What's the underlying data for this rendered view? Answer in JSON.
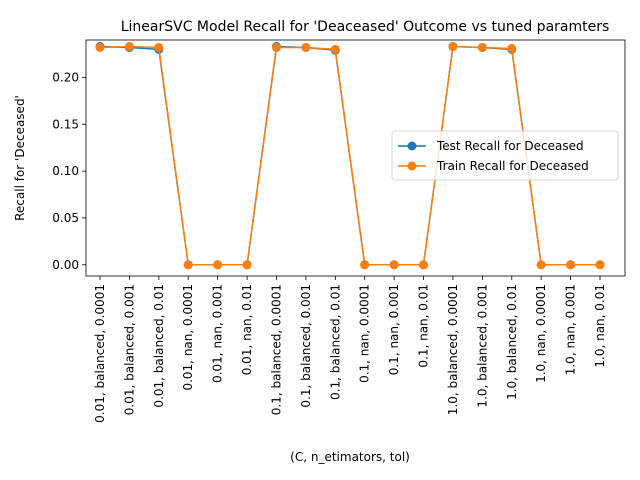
{
  "chart_data": {
    "type": "line",
    "title": "LinearSVC Model Recall for 'Deaceased' Outcome vs tuned paramters",
    "xlabel": "(C, n_etimators, tol)",
    "ylabel": "Recall for 'Deceased'",
    "ylim": [
      -0.012,
      0.24
    ],
    "yticks": [
      "0.00",
      "0.05",
      "0.10",
      "0.15",
      "0.20"
    ],
    "ytick_values": [
      0.0,
      0.05,
      0.1,
      0.15,
      0.2
    ],
    "grid": false,
    "legend_position": "center-right",
    "categories": [
      "0.01, balanced, 0.0001",
      "0.01, balanced, 0.001",
      "0.01, balanced, 0.01",
      "0.01, nan, 0.0001",
      "0.01, nan, 0.001",
      "0.01, nan, 0.01",
      "0.1, balanced, 0.0001",
      "0.1, balanced, 0.001",
      "0.1, balanced, 0.01",
      "0.1, nan, 0.0001",
      "0.1, nan, 0.001",
      "0.1, nan, 0.01",
      "1.0, balanced, 0.0001",
      "1.0, balanced, 0.001",
      "1.0, balanced, 0.01",
      "1.0, nan, 0.0001",
      "1.0, nan, 0.001",
      "1.0, nan, 0.01"
    ],
    "series": [
      {
        "name": "Test Recall for Deceased",
        "color": "#1f77b4",
        "values": [
          0.233,
          0.232,
          0.23,
          0.0,
          0.0,
          0.0,
          0.233,
          0.232,
          0.229,
          0.0,
          0.0,
          0.0,
          0.233,
          0.232,
          0.23,
          0.0,
          0.0,
          0.0
        ]
      },
      {
        "name": "Train Recall for Deceased",
        "color": "#ff7f0e",
        "values": [
          0.232,
          0.233,
          0.232,
          0.0,
          0.0,
          0.0,
          0.232,
          0.232,
          0.23,
          0.0,
          0.0,
          0.0,
          0.233,
          0.232,
          0.231,
          0.0,
          0.0,
          0.0
        ]
      }
    ]
  }
}
